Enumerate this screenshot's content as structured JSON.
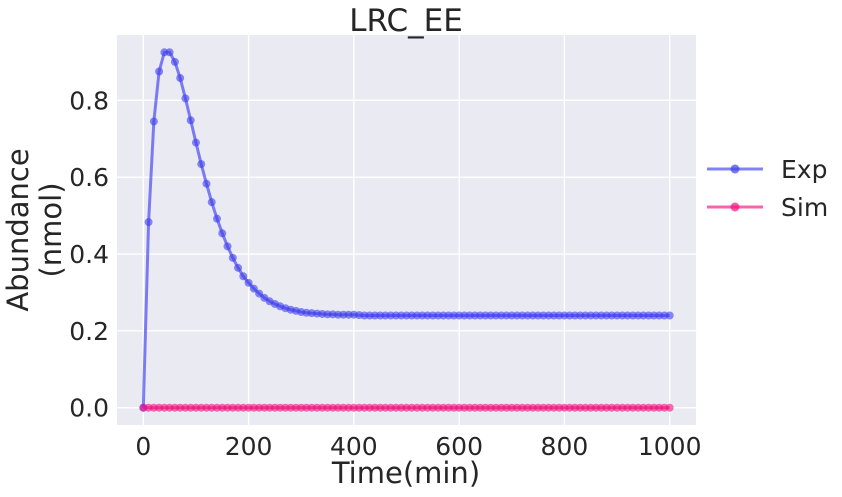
{
  "chart_data": {
    "type": "line",
    "title": "LRC_EE",
    "xlabel": "Time(min)",
    "ylabel_line1": "Abundance",
    "ylabel_line2": "(nmol)",
    "xlim": [
      -50,
      1050
    ],
    "ylim": [
      -0.045,
      0.97
    ],
    "x_ticks": [
      0,
      200,
      400,
      600,
      800,
      1000
    ],
    "x_tick_labels": [
      "0",
      "200",
      "400",
      "600",
      "800",
      "1000"
    ],
    "y_ticks": [
      0.0,
      0.2,
      0.4,
      0.6,
      0.8
    ],
    "y_tick_labels": [
      "0.0",
      "0.2",
      "0.4",
      "0.6",
      "0.8"
    ],
    "grid": true,
    "legend_position": "right, outside plot area",
    "background": "#EAEAF2",
    "series": [
      {
        "name": "Exp",
        "color": "#3F3FEF",
        "x": [
          0,
          10,
          20,
          30,
          40,
          50,
          60,
          70,
          80,
          90,
          100,
          110,
          120,
          130,
          140,
          150,
          160,
          170,
          180,
          190,
          200,
          210,
          220,
          230,
          240,
          250,
          260,
          270,
          280,
          290,
          300,
          310,
          320,
          330,
          340,
          350,
          360,
          370,
          380,
          390,
          400,
          410,
          420,
          430,
          440,
          450,
          460,
          470,
          480,
          490,
          500,
          510,
          520,
          530,
          540,
          550,
          560,
          570,
          580,
          590,
          600,
          610,
          620,
          630,
          640,
          650,
          660,
          670,
          680,
          690,
          700,
          710,
          720,
          730,
          740,
          750,
          760,
          770,
          780,
          790,
          800,
          810,
          820,
          830,
          840,
          850,
          860,
          870,
          880,
          890,
          900,
          910,
          920,
          930,
          940,
          950,
          960,
          970,
          980,
          990,
          1000
        ],
        "values": [
          0.0,
          0.483,
          0.745,
          0.875,
          0.925,
          0.925,
          0.9,
          0.858,
          0.805,
          0.748,
          0.69,
          0.634,
          0.583,
          0.535,
          0.492,
          0.454,
          0.42,
          0.39,
          0.364,
          0.342,
          0.325,
          0.31,
          0.297,
          0.286,
          0.277,
          0.27,
          0.264,
          0.259,
          0.255,
          0.252,
          0.249,
          0.247,
          0.246,
          0.245,
          0.244,
          0.243,
          0.243,
          0.242,
          0.242,
          0.242,
          0.242,
          0.241,
          0.24,
          0.24,
          0.24,
          0.24,
          0.24,
          0.24,
          0.24,
          0.24,
          0.24,
          0.24,
          0.24,
          0.24,
          0.24,
          0.24,
          0.24,
          0.24,
          0.24,
          0.24,
          0.24,
          0.24,
          0.24,
          0.24,
          0.24,
          0.24,
          0.24,
          0.24,
          0.24,
          0.24,
          0.24,
          0.24,
          0.24,
          0.24,
          0.24,
          0.24,
          0.24,
          0.24,
          0.24,
          0.24,
          0.24,
          0.24,
          0.24,
          0.24,
          0.24,
          0.24,
          0.24,
          0.24,
          0.24,
          0.24,
          0.24,
          0.24,
          0.24,
          0.24,
          0.24,
          0.24,
          0.24,
          0.24,
          0.24,
          0.24,
          0.24
        ]
      },
      {
        "name": "Sim",
        "color": "#F0127F",
        "x": [
          0,
          10,
          20,
          30,
          40,
          50,
          60,
          70,
          80,
          90,
          100,
          110,
          120,
          130,
          140,
          150,
          160,
          170,
          180,
          190,
          200,
          210,
          220,
          230,
          240,
          250,
          260,
          270,
          280,
          290,
          300,
          310,
          320,
          330,
          340,
          350,
          360,
          370,
          380,
          390,
          400,
          410,
          420,
          430,
          440,
          450,
          460,
          470,
          480,
          490,
          500,
          510,
          520,
          530,
          540,
          550,
          560,
          570,
          580,
          590,
          600,
          610,
          620,
          630,
          640,
          650,
          660,
          670,
          680,
          690,
          700,
          710,
          720,
          730,
          740,
          750,
          760,
          770,
          780,
          790,
          800,
          810,
          820,
          830,
          840,
          850,
          860,
          870,
          880,
          890,
          900,
          910,
          920,
          930,
          940,
          950,
          960,
          970,
          980,
          990,
          1000
        ],
        "values": [
          0,
          0,
          0,
          0,
          0,
          0,
          0,
          0,
          0,
          0,
          0,
          0,
          0,
          0,
          0,
          0,
          0,
          0,
          0,
          0,
          0,
          0,
          0,
          0,
          0,
          0,
          0,
          0,
          0,
          0,
          0,
          0,
          0,
          0,
          0,
          0,
          0,
          0,
          0,
          0,
          0,
          0,
          0,
          0,
          0,
          0,
          0,
          0,
          0,
          0,
          0,
          0,
          0,
          0,
          0,
          0,
          0,
          0,
          0,
          0,
          0,
          0,
          0,
          0,
          0,
          0,
          0,
          0,
          0,
          0,
          0,
          0,
          0,
          0,
          0,
          0,
          0,
          0,
          0,
          0,
          0,
          0,
          0,
          0,
          0,
          0,
          0,
          0,
          0,
          0,
          0,
          0,
          0,
          0,
          0,
          0,
          0,
          0,
          0,
          0,
          0
        ]
      }
    ]
  }
}
